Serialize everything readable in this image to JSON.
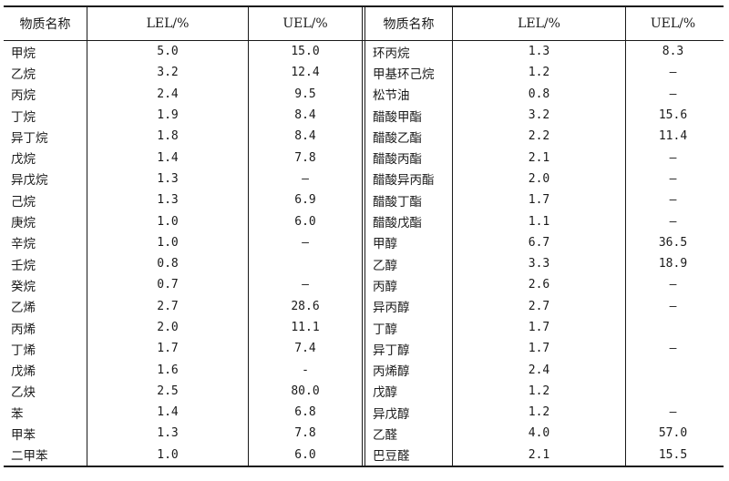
{
  "table": {
    "headers": {
      "name": "物质名称",
      "lel": "LEL/%",
      "uel": "UEL/%"
    },
    "rows": [
      {
        "left": {
          "name": "甲烷",
          "lel": "5.0",
          "uel": "15.0"
        },
        "right": {
          "name": "环丙烷",
          "lel": "1.3",
          "uel": "8.3"
        }
      },
      {
        "left": {
          "name": "乙烷",
          "lel": "3.2",
          "uel": "12.4"
        },
        "right": {
          "name": "甲基环己烷",
          "lel": "1.2",
          "uel": "—"
        }
      },
      {
        "left": {
          "name": "丙烷",
          "lel": "2.4",
          "uel": "9.5"
        },
        "right": {
          "name": "松节油",
          "lel": "0.8",
          "uel": "—"
        }
      },
      {
        "left": {
          "name": "丁烷",
          "lel": "1.9",
          "uel": "8.4"
        },
        "right": {
          "name": "醋酸甲酯",
          "lel": "3.2",
          "uel": "15.6"
        }
      },
      {
        "left": {
          "name": "异丁烷",
          "lel": "1.8",
          "uel": "8.4"
        },
        "right": {
          "name": "醋酸乙酯",
          "lel": "2.2",
          "uel": "11.4"
        }
      },
      {
        "left": {
          "name": "戊烷",
          "lel": "1.4",
          "uel": "7.8"
        },
        "right": {
          "name": "醋酸丙酯",
          "lel": "2.1",
          "uel": "—"
        }
      },
      {
        "left": {
          "name": "异戊烷",
          "lel": "1.3",
          "uel": "—"
        },
        "right": {
          "name": "醋酸异丙酯",
          "lel": "2.0",
          "uel": "—"
        }
      },
      {
        "left": {
          "name": "己烷",
          "lel": "1.3",
          "uel": "6.9"
        },
        "right": {
          "name": "醋酸丁酯",
          "lel": "1.7",
          "uel": "—"
        }
      },
      {
        "left": {
          "name": "庚烷",
          "lel": "1.0",
          "uel": "6.0"
        },
        "right": {
          "name": "醋酸戊酯",
          "lel": "1.1",
          "uel": "—"
        }
      },
      {
        "left": {
          "name": "辛烷",
          "lel": "1.0",
          "uel": "—"
        },
        "right": {
          "name": "甲醇",
          "lel": "6.7",
          "uel": "36.5"
        }
      },
      {
        "left": {
          "name": "壬烷",
          "lel": "0.8",
          "uel": ""
        },
        "right": {
          "name": "乙醇",
          "lel": "3.3",
          "uel": "18.9"
        }
      },
      {
        "left": {
          "name": "癸烷",
          "lel": "0.7",
          "uel": "—"
        },
        "right": {
          "name": "丙醇",
          "lel": "2.6",
          "uel": "—"
        }
      },
      {
        "left": {
          "name": "乙烯",
          "lel": "2.7",
          "uel": "28.6"
        },
        "right": {
          "name": "异丙醇",
          "lel": "2.7",
          "uel": "—"
        }
      },
      {
        "left": {
          "name": "丙烯",
          "lel": "2.0",
          "uel": "11.1"
        },
        "right": {
          "name": "丁醇",
          "lel": "1.7",
          "uel": ""
        }
      },
      {
        "left": {
          "name": "丁烯",
          "lel": "1.7",
          "uel": "7.4"
        },
        "right": {
          "name": "异丁醇",
          "lel": "1.7",
          "uel": "—"
        }
      },
      {
        "left": {
          "name": "戊烯",
          "lel": "1.6",
          "uel": "-"
        },
        "right": {
          "name": "丙烯醇",
          "lel": "2.4",
          "uel": ""
        }
      },
      {
        "left": {
          "name": "乙炔",
          "lel": "2.5",
          "uel": "80.0"
        },
        "right": {
          "name": "戊醇",
          "lel": "1.2",
          "uel": ""
        }
      },
      {
        "left": {
          "name": "苯",
          "lel": "1.4",
          "uel": "6.8"
        },
        "right": {
          "name": "异戊醇",
          "lel": "1.2",
          "uel": "—"
        }
      },
      {
        "left": {
          "name": "甲苯",
          "lel": "1.3",
          "uel": "7.8"
        },
        "right": {
          "name": "乙醛",
          "lel": "4.0",
          "uel": "57.0"
        }
      },
      {
        "left": {
          "name": "二甲苯",
          "lel": "1.0",
          "uel": "6.0"
        },
        "right": {
          "name": "巴豆醛",
          "lel": "2.1",
          "uel": "15.5"
        }
      }
    ]
  }
}
